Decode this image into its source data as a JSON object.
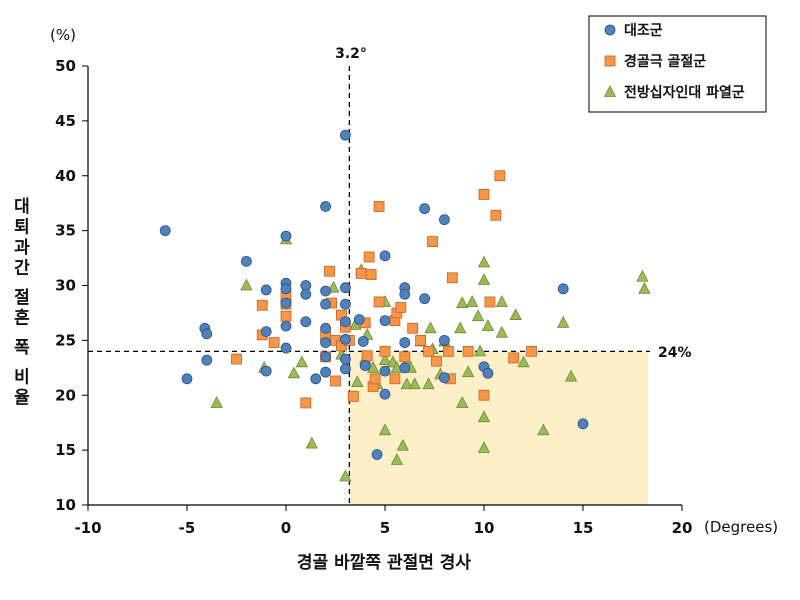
{
  "chart_data": {
    "type": "scatter",
    "xlabel": "경골 바깥쪽 관절면 경사",
    "ylabel": "대퇴과간 절흔 폭 비율",
    "x_unit": "(Degrees)",
    "y_unit": "(%)",
    "xlim": [
      -10,
      20
    ],
    "ylim": [
      10,
      50
    ],
    "x_ticks": [
      "-10",
      "-5",
      "0",
      "5",
      "10",
      "15",
      "20"
    ],
    "y_ticks": [
      "10",
      "15",
      "20",
      "25",
      "30",
      "35",
      "40",
      "45",
      "50"
    ],
    "grid": false,
    "legend_position": "top-right",
    "reference_lines": {
      "vertical": {
        "x": 3.2,
        "label": "3.2°"
      },
      "horizontal": {
        "y": 24,
        "label": "24%"
      }
    },
    "shaded_region": {
      "x": [
        3.2,
        18.3
      ],
      "y": [
        10,
        24
      ],
      "color": "#fdf0c9"
    },
    "series": [
      {
        "name": "대조군",
        "marker": "circle",
        "color": "#4f81bd",
        "points": [
          [
            -6.1,
            35.0
          ],
          [
            -4.1,
            26.1
          ],
          [
            -4.0,
            25.6
          ],
          [
            -4.0,
            23.2
          ],
          [
            -5.0,
            21.5
          ],
          [
            -2.0,
            32.2
          ],
          [
            -1.0,
            29.6
          ],
          [
            -1.0,
            25.8
          ],
          [
            -1.0,
            22.2
          ],
          [
            0.0,
            34.5
          ],
          [
            0.0,
            30.2
          ],
          [
            0.0,
            29.7
          ],
          [
            0.0,
            28.4
          ],
          [
            0.0,
            26.3
          ],
          [
            0.0,
            24.3
          ],
          [
            1.0,
            30.0
          ],
          [
            1.0,
            29.2
          ],
          [
            1.0,
            26.7
          ],
          [
            1.5,
            21.5
          ],
          [
            2.0,
            37.2
          ],
          [
            2.0,
            29.5
          ],
          [
            2.0,
            28.3
          ],
          [
            2.0,
            26.1
          ],
          [
            2.0,
            24.8
          ],
          [
            2.0,
            23.5
          ],
          [
            2.0,
            22.1
          ],
          [
            3.0,
            43.7
          ],
          [
            3.0,
            29.8
          ],
          [
            3.0,
            28.3
          ],
          [
            3.0,
            26.7
          ],
          [
            3.0,
            25.1
          ],
          [
            3.0,
            23.3
          ],
          [
            3.0,
            22.4
          ],
          [
            3.7,
            26.9
          ],
          [
            3.9,
            24.9
          ],
          [
            4.0,
            22.7
          ],
          [
            5.0,
            32.7
          ],
          [
            5.0,
            26.8
          ],
          [
            5.0,
            22.2
          ],
          [
            5.0,
            20.1
          ],
          [
            4.6,
            14.6
          ],
          [
            6.0,
            29.8
          ],
          [
            6.0,
            29.2
          ],
          [
            6.0,
            24.8
          ],
          [
            6.0,
            22.5
          ],
          [
            7.0,
            37.0
          ],
          [
            7.0,
            28.8
          ],
          [
            8.0,
            36.0
          ],
          [
            8.0,
            25.0
          ],
          [
            8.0,
            21.6
          ],
          [
            10.0,
            22.6
          ],
          [
            10.2,
            22.0
          ],
          [
            14.0,
            29.7
          ],
          [
            15.0,
            17.4
          ]
        ]
      },
      {
        "name": "경골극 골절군",
        "marker": "square",
        "color": "#f79646",
        "points": [
          [
            -2.5,
            23.3
          ],
          [
            -1.2,
            28.2
          ],
          [
            -1.2,
            25.5
          ],
          [
            -0.6,
            24.8
          ],
          [
            0.0,
            29.0
          ],
          [
            0.0,
            28.3
          ],
          [
            0.0,
            27.2
          ],
          [
            1.0,
            19.3
          ],
          [
            2.0,
            25.4
          ],
          [
            2.0,
            23.5
          ],
          [
            2.2,
            31.3
          ],
          [
            2.3,
            28.4
          ],
          [
            2.5,
            25.0
          ],
          [
            2.5,
            21.3
          ],
          [
            2.8,
            27.3
          ],
          [
            2.8,
            24.5
          ],
          [
            3.0,
            26.2
          ],
          [
            3.2,
            25.0
          ],
          [
            3.4,
            19.9
          ],
          [
            3.8,
            31.1
          ],
          [
            4.0,
            26.6
          ],
          [
            4.1,
            23.6
          ],
          [
            4.2,
            32.6
          ],
          [
            4.3,
            31.0
          ],
          [
            4.4,
            20.8
          ],
          [
            4.5,
            21.5
          ],
          [
            4.7,
            37.2
          ],
          [
            4.7,
            28.5
          ],
          [
            5.0,
            24.0
          ],
          [
            5.5,
            26.8
          ],
          [
            5.5,
            21.5
          ],
          [
            5.6,
            27.5
          ],
          [
            5.8,
            28.0
          ],
          [
            6.0,
            23.5
          ],
          [
            6.4,
            26.1
          ],
          [
            6.8,
            25.0
          ],
          [
            7.2,
            24.0
          ],
          [
            7.4,
            34.0
          ],
          [
            7.6,
            23.1
          ],
          [
            8.2,
            24.0
          ],
          [
            8.3,
            21.5
          ],
          [
            8.4,
            30.7
          ],
          [
            9.2,
            24.0
          ],
          [
            10.0,
            38.3
          ],
          [
            10.0,
            20.0
          ],
          [
            10.3,
            28.5
          ],
          [
            10.6,
            36.4
          ],
          [
            10.8,
            40.0
          ],
          [
            11.5,
            23.4
          ],
          [
            12.4,
            24.0
          ]
        ]
      },
      {
        "name": "전방십자인대 파열군",
        "marker": "triangle",
        "color": "#9bbb59",
        "points": [
          [
            -3.5,
            19.3
          ],
          [
            -2.0,
            30.0
          ],
          [
            -1.1,
            22.5
          ],
          [
            0.0,
            34.2
          ],
          [
            0.4,
            22.0
          ],
          [
            0.8,
            23.0
          ],
          [
            1.3,
            15.6
          ],
          [
            2.4,
            29.8
          ],
          [
            2.8,
            23.7
          ],
          [
            3.0,
            12.6
          ],
          [
            3.5,
            26.4
          ],
          [
            3.6,
            21.2
          ],
          [
            3.8,
            31.4
          ],
          [
            4.0,
            23.3
          ],
          [
            4.1,
            25.5
          ],
          [
            4.4,
            22.5
          ],
          [
            4.6,
            21.0
          ],
          [
            5.0,
            28.5
          ],
          [
            5.0,
            23.2
          ],
          [
            5.0,
            16.8
          ],
          [
            5.4,
            23.0
          ],
          [
            5.6,
            22.5
          ],
          [
            5.6,
            14.1
          ],
          [
            5.9,
            15.4
          ],
          [
            6.1,
            23.0
          ],
          [
            6.1,
            21.0
          ],
          [
            6.3,
            22.5
          ],
          [
            6.5,
            21.0
          ],
          [
            6.8,
            24.9
          ],
          [
            7.2,
            21.0
          ],
          [
            7.3,
            26.1
          ],
          [
            7.4,
            24.2
          ],
          [
            7.8,
            21.9
          ],
          [
            8.0,
            24.9
          ],
          [
            8.8,
            26.1
          ],
          [
            8.9,
            28.4
          ],
          [
            8.9,
            19.3
          ],
          [
            9.2,
            22.1
          ],
          [
            9.4,
            28.5
          ],
          [
            9.7,
            27.2
          ],
          [
            9.8,
            24.0
          ],
          [
            10.0,
            32.1
          ],
          [
            10.0,
            30.5
          ],
          [
            10.0,
            18.0
          ],
          [
            10.0,
            15.2
          ],
          [
            10.2,
            26.3
          ],
          [
            10.9,
            25.7
          ],
          [
            10.9,
            28.5
          ],
          [
            11.6,
            27.3
          ],
          [
            12.0,
            23.0
          ],
          [
            13.0,
            16.8
          ],
          [
            14.0,
            26.6
          ],
          [
            14.4,
            21.7
          ],
          [
            18.0,
            30.8
          ],
          [
            18.1,
            29.7
          ]
        ]
      }
    ]
  }
}
